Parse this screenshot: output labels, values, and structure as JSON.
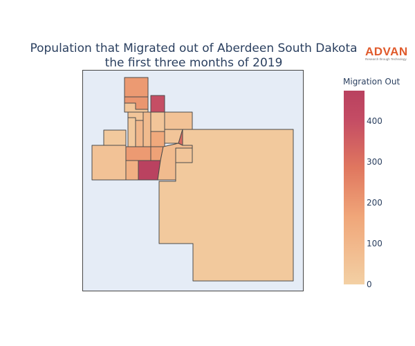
{
  "title": {
    "line1": "Population that Migrated out of Aberdeen South Dakota",
    "line2": "the first three months of 2019"
  },
  "logo": {
    "word": "ADVAN",
    "tagline": "Research through Technology",
    "color": "#e05a2b"
  },
  "colorbar": {
    "title": "Migration Out",
    "min": 0,
    "max": 475,
    "ticks": [
      0,
      100,
      200,
      300,
      400
    ],
    "colorscale": [
      "#f3d0a4",
      "#f0a679",
      "#e0775f",
      "#c44c64",
      "#b9415f"
    ]
  },
  "map": {
    "background": "#e5ecf6",
    "border_color": "#444444",
    "regions": [
      {
        "id": "r01",
        "value": 150
      },
      {
        "id": "r02",
        "value": 160
      },
      {
        "id": "r03",
        "value": 25
      },
      {
        "id": "r04",
        "value": 350
      },
      {
        "id": "r05",
        "value": 30
      },
      {
        "id": "r06",
        "value": 20
      },
      {
        "id": "r07",
        "value": 70
      },
      {
        "id": "r08",
        "value": 60
      },
      {
        "id": "r09",
        "value": 40
      },
      {
        "id": "r10",
        "value": 110
      },
      {
        "id": "r11",
        "value": 20
      },
      {
        "id": "r12",
        "value": 150
      },
      {
        "id": "r13",
        "value": 30
      },
      {
        "id": "r14",
        "value": 280
      },
      {
        "id": "r15",
        "value": 40
      },
      {
        "id": "r16",
        "value": 90
      },
      {
        "id": "r17",
        "value": 130
      },
      {
        "id": "r18",
        "value": 460
      },
      {
        "id": "r19",
        "value": 60
      },
      {
        "id": "r20",
        "value": 30
      },
      {
        "id": "r21",
        "value": 20
      }
    ]
  }
}
